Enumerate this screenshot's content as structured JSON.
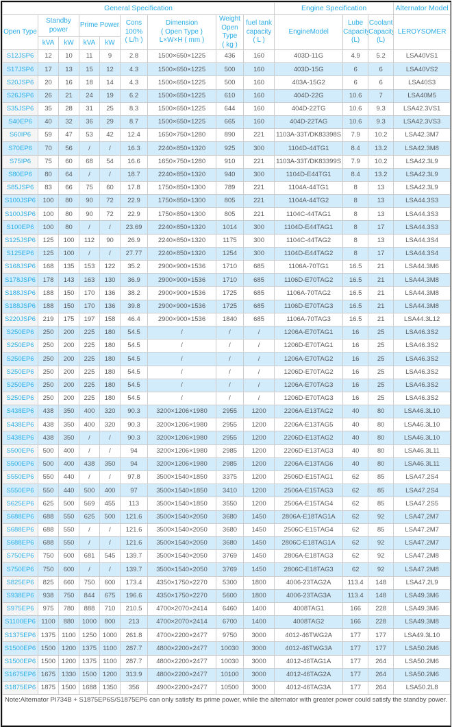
{
  "table": {
    "groups": {
      "general": "General Specification",
      "engine": "Engine Specification",
      "alternator": "Alternator Model"
    },
    "headers": {
      "open_type": "Open Type",
      "standby_power": "Standby\npower",
      "prime_power": "Prime Power",
      "kva": "kVA",
      "kw": "kW",
      "cons": "Cons\n100%\n( L/h )",
      "dimension": "Dimension\n( Open Type )\nL×W×H ( mm )",
      "weight": "Weight\nOpen Type\n( kg )",
      "fuel_tank": "fuel tank\ncapacity\n( L )",
      "engine_model": "EngineModel",
      "lube_capacity": "Lube\nCapacity\n(L)",
      "coolant_capacity": "Coolant\nCapacity\n(L)",
      "alternator_brand": "LEROYSOMER"
    },
    "rows": [
      [
        "S12JSP6",
        "12",
        "10",
        "11",
        "9",
        "2.8",
        "1500×650×1225",
        "436",
        "160",
        "403D-11G",
        "4.9",
        "5.2",
        "LSA40VS1"
      ],
      [
        "S17JSP6",
        "17",
        "13",
        "15",
        "12",
        "4.3",
        "1500×650×1225",
        "500",
        "160",
        "403D-15G",
        "6",
        "6",
        "LSA40VS2"
      ],
      [
        "S20JSP6",
        "20",
        "16",
        "18",
        "14",
        "4.3",
        "1500×650×1225",
        "500",
        "160",
        "403A-15G2",
        "6",
        "6",
        "LSA40S3"
      ],
      [
        "S26JSP6",
        "26",
        "21",
        "24",
        "19",
        "6.2",
        "1500×650×1225",
        "610",
        "160",
        "404D-22G",
        "10.6",
        "7",
        "LSA40M5"
      ],
      [
        "S35JSP6",
        "35",
        "28",
        "31",
        "25",
        "8.3",
        "1500×650×1225",
        "644",
        "160",
        "404D-22TG",
        "10.6",
        "9.3",
        "LSA42.3VS1"
      ],
      [
        "S40EP6",
        "40",
        "32",
        "36",
        "29",
        "8.7",
        "1500×650×1225",
        "665",
        "160",
        "404D-22TAG",
        "10.6",
        "9.3",
        "LSA42.3VS3"
      ],
      [
        "S60IP6",
        "59",
        "47",
        "53",
        "42",
        "12.4",
        "1650×750×1280",
        "890",
        "221",
        "1103A-33T/DK83398S",
        "7.9",
        "10.2",
        "LSA42.3M7"
      ],
      [
        "S70EP6",
        "70",
        "56",
        "/",
        "/",
        "16.3",
        "2240×850×1320",
        "925",
        "300",
        "1104D-44TG1",
        "8.4",
        "13.2",
        "LSA42.3M8"
      ],
      [
        "S75IP6",
        "75",
        "60",
        "68",
        "54",
        "16.6",
        "1650×750×1280",
        "910",
        "221",
        "1103A-33T/DK83399S",
        "7.9",
        "10.2",
        "LSA42.3L9"
      ],
      [
        "S80EP6",
        "80",
        "64",
        "/",
        "/",
        "18.7",
        "2240×850×1320",
        "940",
        "300",
        "1104D-E44TG1",
        "8.4",
        "13.2",
        "LSA42.3L9"
      ],
      [
        "S85JSP6",
        "83",
        "66",
        "75",
        "60",
        "17.8",
        "1750×850×1300",
        "789",
        "221",
        "1104A-44TG1",
        "8",
        "13",
        "LSA42.3L9"
      ],
      [
        "S100JSP6",
        "100",
        "80",
        "90",
        "72",
        "22.9",
        "1750×850×1300",
        "805",
        "221",
        "1104A-44TG2",
        "8",
        "13",
        "LSA44.3S3"
      ],
      [
        "S100JSP6",
        "100",
        "80",
        "90",
        "72",
        "22.9",
        "1750×850×1300",
        "805",
        "221",
        "1104C-44TAG1",
        "8",
        "13",
        "LSA44.3S3"
      ],
      [
        "S100EP6",
        "100",
        "80",
        "/",
        "/",
        "23.69",
        "2240×850×1320",
        "1014",
        "300",
        "1104D-E44TAG1",
        "8",
        "17",
        "LSA44.3S3"
      ],
      [
        "S125JSP6",
        "125",
        "100",
        "112",
        "90",
        "26.9",
        "2240×850×1320",
        "1175",
        "300",
        "1104C-44TAG2",
        "8",
        "13",
        "LSA44.3S4"
      ],
      [
        "S125EP6",
        "125",
        "100",
        "/",
        "/",
        "27.77",
        "2240×850×1320",
        "1254",
        "300",
        "1104D-E44TAG2",
        "8",
        "17",
        "LSA44.3S4"
      ],
      [
        "S168JSP6",
        "168",
        "135",
        "153",
        "122",
        "35.2",
        "2900×900×1536",
        "1710",
        "685",
        "1106A-70TG1",
        "16.5",
        "21",
        "LSA44.3M6"
      ],
      [
        "S178JSP6",
        "178",
        "143",
        "163",
        "130",
        "36.9",
        "2900×900×1536",
        "1710",
        "685",
        "1106D-E70TAG2",
        "16.5",
        "21",
        "LSA44.3M8"
      ],
      [
        "S188JSP6",
        "188",
        "150",
        "170",
        "136",
        "38.2",
        "2900×900×1536",
        "1725",
        "685",
        "1106A-70TAG2",
        "16.5",
        "21",
        "LSA44.3M8"
      ],
      [
        "S188JSP6",
        "188",
        "150",
        "170",
        "136",
        "39.8",
        "2900×900×1536",
        "1725",
        "685",
        "1106D-E70TAG3",
        "16.5",
        "21",
        "LSA44.3M8"
      ],
      [
        "S220JSP6",
        "219",
        "175",
        "197",
        "158",
        "46.4",
        "2900×900×1536",
        "1840",
        "685",
        "1106A-70TAG3",
        "16.5",
        "21",
        "LSA44.3L12"
      ],
      [
        "S250EP6",
        "250",
        "200",
        "225",
        "180",
        "54.5",
        "/",
        "/",
        "/",
        "1206A-E70TAG1",
        "16",
        "25",
        "LSA46.3S2"
      ],
      [
        "S250EP6",
        "250",
        "200",
        "225",
        "180",
        "54.5",
        "/",
        "/",
        "/",
        "1206D-E70TAG1",
        "16",
        "25",
        "LSA46.3S2"
      ],
      [
        "S250EP6",
        "250",
        "200",
        "225",
        "180",
        "54.5",
        "/",
        "/",
        "/",
        "1206A-E70TAG2",
        "16",
        "25",
        "LSA46.3S2"
      ],
      [
        "S250EP6",
        "250",
        "200",
        "225",
        "180",
        "54.5",
        "/",
        "/",
        "/",
        "1206D-E70TAG2",
        "16",
        "25",
        "LSA46.3S2"
      ],
      [
        "S250EP6",
        "250",
        "200",
        "225",
        "180",
        "54.5",
        "/",
        "/",
        "/",
        "1206A-E70TAG3",
        "16",
        "25",
        "LSA46.3S2"
      ],
      [
        "S250EP6",
        "250",
        "200",
        "225",
        "180",
        "54.5",
        "/",
        "/",
        "/",
        "1206D-E70TAG3",
        "16",
        "25",
        "LSA46.3S2"
      ],
      [
        "S438EP6",
        "438",
        "350",
        "400",
        "320",
        "90.3",
        "3200×1206×1980",
        "2955",
        "1200",
        "2206A-E13TAG2",
        "40",
        "80",
        "LSA46.3L10"
      ],
      [
        "S438EP6",
        "438",
        "350",
        "400",
        "320",
        "90.3",
        "3200×1206×1980",
        "2955",
        "1200",
        "2206A-E13TAG5",
        "40",
        "80",
        "LSA46.3L10"
      ],
      [
        "S438EP6",
        "438",
        "350",
        "/",
        "/",
        "90.3",
        "3200×1206×1980",
        "2955",
        "1200",
        "2206D-E13TAG2",
        "40",
        "80",
        "LSA46.3L10"
      ],
      [
        "S500EP6",
        "500",
        "400",
        "/",
        "/",
        "94",
        "3200×1206×1980",
        "2985",
        "1200",
        "2206D-E13TAG3",
        "40",
        "80",
        "LSA46.3L11"
      ],
      [
        "S500EP6",
        "500",
        "400",
        "438",
        "350",
        "94",
        "3200×1206×1980",
        "2985",
        "1200",
        "2206A-E13TAG6",
        "40",
        "80",
        "LSA46.3L11"
      ],
      [
        "S550EP6",
        "550",
        "440",
        "/",
        "/",
        "97.8",
        "3500×1540×1850",
        "3375",
        "1200",
        "2506D-E15TAG1",
        "62",
        "85",
        "LSA47.2S4"
      ],
      [
        "S550EP6",
        "550",
        "440",
        "500",
        "400",
        "97",
        "3500×1540×1850",
        "3410",
        "1200",
        "2506A-E15TAG3",
        "62",
        "85",
        "LSA47.2S4"
      ],
      [
        "S625EP6",
        "625",
        "500",
        "569",
        "455",
        "113",
        "3500×1540×1850",
        "3550",
        "1200",
        "2506A-E15TAG4",
        "62",
        "85",
        "LSA47.2S5"
      ],
      [
        "S688EP6",
        "688",
        "550",
        "625",
        "500",
        "121.6",
        "3500×1540×2050",
        "3680",
        "1450",
        "2806A-E18TAG1A",
        "62",
        "92",
        "LSA47.2M7"
      ],
      [
        "S688EP6",
        "688",
        "550",
        "/",
        "/",
        "121.6",
        "3500×1540×2050",
        "3680",
        "1450",
        "2506C-E15TAG4",
        "62",
        "85",
        "LSA47.2M7"
      ],
      [
        "S688EP6",
        "688",
        "550",
        "/",
        "/",
        "121.6",
        "3500×1540×2050",
        "3680",
        "1450",
        "2806C-E18TAG1A",
        "62",
        "92",
        "LSA47.2M7"
      ],
      [
        "S750EP6",
        "750",
        "600",
        "681",
        "545",
        "139.7",
        "3500×1540×2050",
        "3769",
        "1450",
        "2806A-E18TAG3",
        "62",
        "92",
        "LSA47.2M8"
      ],
      [
        "S750EP6",
        "750",
        "600",
        "/",
        "/",
        "139.7",
        "3500×1540×2050",
        "3769",
        "1450",
        "2806C-E18TAG3",
        "62",
        "92",
        "LSA47.2M8"
      ],
      [
        "S825EP6",
        "825",
        "660",
        "750",
        "600",
        "173.4",
        "4350×1750×2270",
        "5300",
        "1800",
        "4006-23TAG2A",
        "113.4",
        "148",
        "LSA47.2L9"
      ],
      [
        "S938EP6",
        "938",
        "750",
        "844",
        "675",
        "196.6",
        "4350×1750×2270",
        "5600",
        "1800",
        "4006-23TAG3A",
        "113.4",
        "148",
        "LSA49.3M6"
      ],
      [
        "S975EP6",
        "975",
        "780",
        "888",
        "710",
        "210.5",
        "4700×2070×2414",
        "6460",
        "1400",
        "4008TAG1",
        "166",
        "228",
        "LSA49.3M6"
      ],
      [
        "S1100EP6",
        "1100",
        "880",
        "1000",
        "800",
        "213",
        "4700×2070×2414",
        "6700",
        "1400",
        "4008TAG2",
        "166",
        "228",
        "LSA49.3M8"
      ],
      [
        "S1375EP6",
        "1375",
        "1100",
        "1250",
        "1000",
        "261.8",
        "4700×2200×2477",
        "9750",
        "3000",
        "4012-46TWG2A",
        "177",
        "177",
        "LSA49.3L10"
      ],
      [
        "S1500EP6",
        "1500",
        "1200",
        "1375",
        "1100",
        "287.7",
        "4800×2200×2477",
        "10030",
        "3000",
        "4012-46TWG3A",
        "177",
        "177",
        "LSA50.2M6"
      ],
      [
        "S1500EP6",
        "1500",
        "1200",
        "1375",
        "1100",
        "287.7",
        "4800×2200×2477",
        "10030",
        "3000",
        "4012-46TAG1A",
        "177",
        "264",
        "LSA50.2M6"
      ],
      [
        "S1675EP6",
        "1675",
        "1330",
        "1500",
        "1200",
        "313.9",
        "4800×2200×2477",
        "10100",
        "3000",
        "4012-46TAG2A",
        "177",
        "264",
        "LSA50.2M6"
      ],
      [
        "S1875EP6",
        "1875",
        "1500",
        "1688",
        "1350",
        "356",
        "4900×2200×2477",
        "10500",
        "3000",
        "4012-46TAG3A",
        "177",
        "264",
        "LSA50.2L8"
      ]
    ],
    "note": "Note:Alternator PI734B + S1875EP6S/S1875EP6 can only satisfy its prime power, while the alternator with greater power could satisfy the standby power."
  }
}
